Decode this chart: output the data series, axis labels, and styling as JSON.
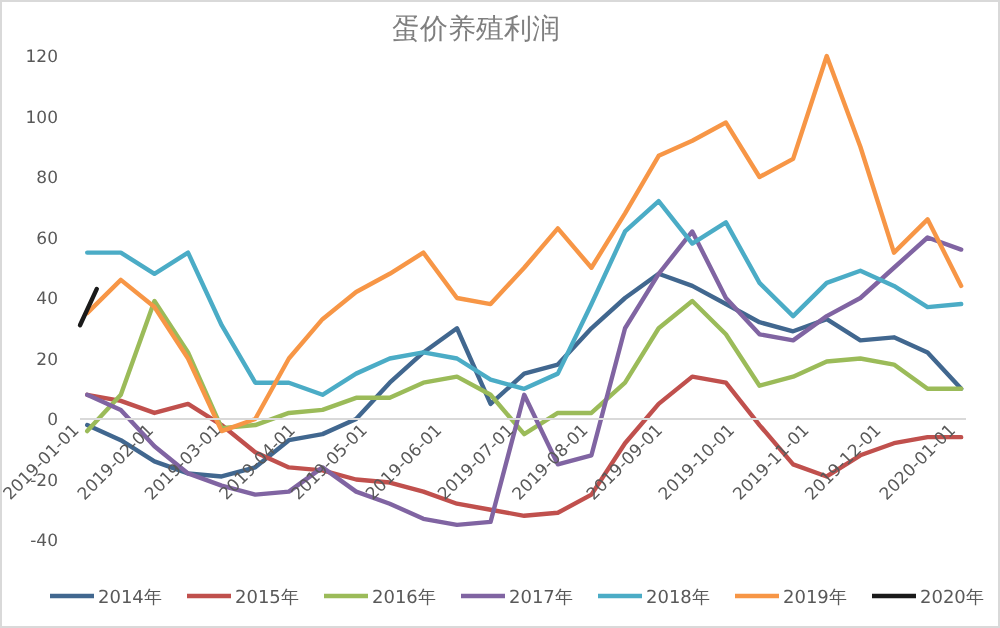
{
  "chart_data": {
    "type": "line",
    "title": "蛋价养殖利润",
    "x": [
      "2019-01-04",
      "2019-01-18",
      "2019-02-01",
      "2019-02-15",
      "2019-03-01",
      "2019-03-15",
      "2019-03-29",
      "2019-04-12",
      "2019-04-26",
      "2019-05-10",
      "2019-05-24",
      "2019-06-07",
      "2019-06-21",
      "2019-07-05",
      "2019-07-19",
      "2019-08-02",
      "2019-08-16",
      "2019-08-30",
      "2019-09-13",
      "2019-09-27",
      "2019-10-11",
      "2019-10-25",
      "2019-11-08",
      "2019-11-22",
      "2019-12-06",
      "2019-12-20",
      "2020-01-03"
    ],
    "series": [
      {
        "name": "2014年",
        "color": "#41678f",
        "values": [
          -2,
          -7,
          -14,
          -18,
          -19,
          -16,
          -7,
          -5,
          0,
          12,
          22,
          30,
          5,
          15,
          18,
          30,
          40,
          48,
          44,
          38,
          32,
          29,
          33,
          26,
          27,
          22,
          10
        ]
      },
      {
        "name": "2015年",
        "color": "#c0504d",
        "values": [
          8,
          6,
          2,
          5,
          -2,
          -11,
          -16,
          -17,
          -20,
          -21,
          -24,
          -28,
          -30,
          -32,
          -31,
          -25,
          -8,
          5,
          14,
          12,
          -2,
          -15,
          -19,
          -12,
          -8,
          -6,
          -6
        ]
      },
      {
        "name": "2016年",
        "color": "#9bbb59",
        "values": [
          -4,
          8,
          39,
          22,
          -3,
          -2,
          2,
          3,
          7,
          7,
          12,
          14,
          8,
          -5,
          2,
          2,
          12,
          30,
          39,
          28,
          11,
          14,
          19,
          20,
          18,
          10,
          10
        ]
      },
      {
        "name": "2017年",
        "color": "#8064a2",
        "values": [
          8,
          3,
          -9,
          -18,
          -22,
          -25,
          -24,
          -16,
          -24,
          -28,
          -33,
          -35,
          -34,
          8,
          -15,
          -12,
          30,
          48,
          62,
          40,
          28,
          26,
          34,
          40,
          50,
          60,
          56
        ]
      },
      {
        "name": "2018年",
        "color": "#4bacc6",
        "values": [
          55,
          55,
          48,
          55,
          31,
          12,
          12,
          8,
          15,
          20,
          22,
          20,
          13,
          10,
          15,
          38,
          62,
          72,
          58,
          65,
          45,
          34,
          45,
          49,
          44,
          37,
          38
        ]
      },
      {
        "name": "2019年",
        "color": "#f79646",
        "values": [
          35,
          46,
          37,
          20,
          -4,
          0,
          20,
          33,
          42,
          48,
          55,
          40,
          38,
          50,
          63,
          50,
          68,
          87,
          92,
          98,
          80,
          86,
          120,
          90,
          55,
          66,
          44
        ]
      },
      {
        "name": "2020年",
        "color": "#1a1a1a",
        "x": [
          "2019-01-01",
          "2019-01-08"
        ],
        "values": [
          31,
          43
        ]
      }
    ],
    "xlim": [
      "2019-01-01",
      "2020-01-05"
    ],
    "xticks": [
      "2019-01-01",
      "2019-02-01",
      "2019-03-01",
      "2019-04-01",
      "2019-05-01",
      "2019-06-01",
      "2019-07-01",
      "2019-08-01",
      "2019-09-01",
      "2019-10-01",
      "2019-11-01",
      "2019-12-01",
      "2020-01-01"
    ],
    "ylim": [
      -40,
      120
    ],
    "yticks": [
      -40,
      -20,
      0,
      20,
      40,
      60,
      80,
      100,
      120
    ],
    "legend": "bottom"
  }
}
